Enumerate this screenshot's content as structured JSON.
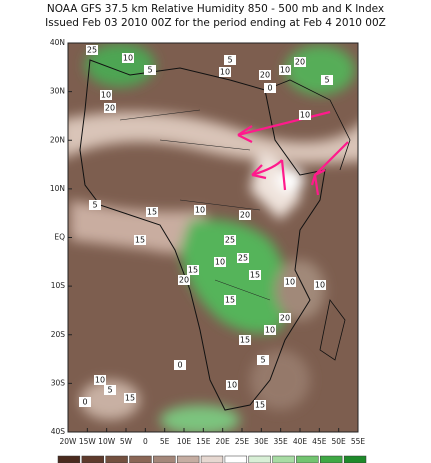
{
  "header": {
    "lines": [
      "NOAA GFS 37.5 km Relative Humidity 850 - 500 mb and K Index",
      "Issued Feb 03 2010 00Z for the period ending at Feb 4 2010 00Z"
    ]
  },
  "map": {
    "lat_labels": [
      "40N",
      "30N",
      "20N",
      "10N",
      "EQ",
      "10S",
      "20S",
      "30S",
      "40S"
    ],
    "lon_labels": [
      "20W",
      "15W",
      "10W",
      "5W",
      "0",
      "5E",
      "10E",
      "15E",
      "20E",
      "25E",
      "30E",
      "35E",
      "40E",
      "45E",
      "50E",
      "55E"
    ],
    "contour_labels": [
      "25",
      "10",
      "5",
      "10",
      "20",
      "10",
      "5",
      "20",
      "20",
      "10",
      "5",
      "0",
      "10",
      "5",
      "15",
      "10",
      "20",
      "25",
      "15",
      "15",
      "25",
      "10",
      "20",
      "15",
      "10",
      "10",
      "15",
      "10",
      "5",
      "0",
      "10",
      "15",
      "5",
      "10",
      "0",
      "15",
      "20",
      "15"
    ]
  }
}
